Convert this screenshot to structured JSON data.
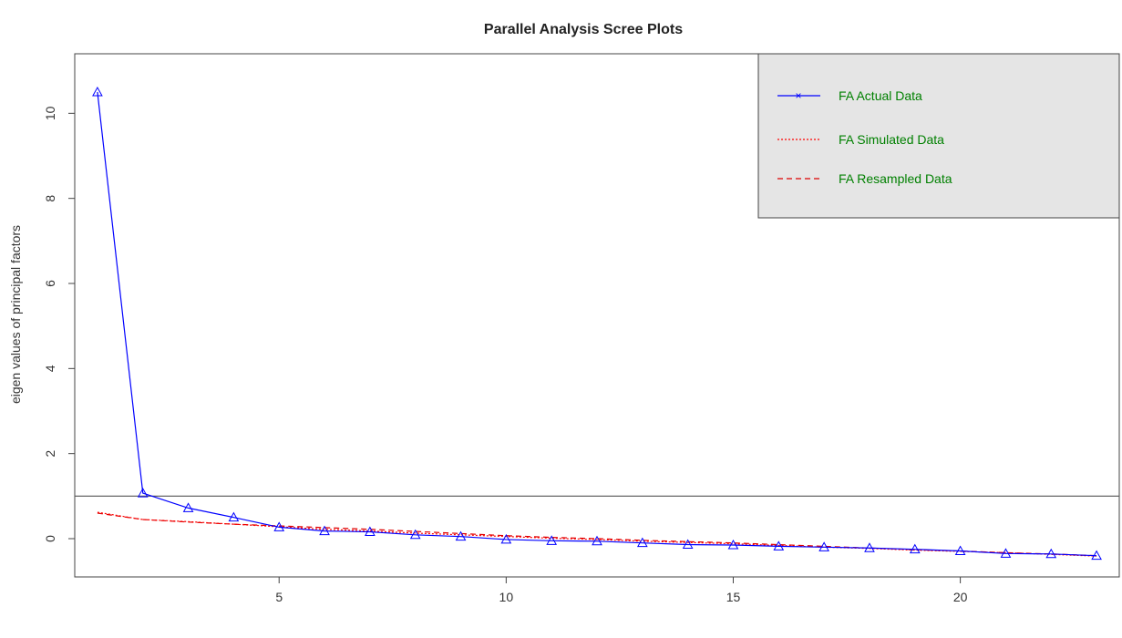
{
  "chart_data": {
    "type": "line",
    "title": "Parallel Analysis Scree Plots",
    "xlabel": "",
    "ylabel": "eigen values of principal factors",
    "xlim": [
      0.5,
      23.5
    ],
    "ylim": [
      -0.9,
      11.4
    ],
    "x_ticks": [
      5,
      10,
      15,
      20
    ],
    "y_ticks": [
      0,
      2,
      4,
      6,
      8,
      10
    ],
    "grid": false,
    "legend_position": "top-right",
    "reference_line": 1,
    "x": [
      1,
      2,
      3,
      4,
      5,
      6,
      7,
      8,
      9,
      10,
      11,
      12,
      13,
      14,
      15,
      16,
      17,
      18,
      19,
      20,
      21,
      22,
      23
    ],
    "series": [
      {
        "name": "FA  Actual Data",
        "values": [
          10.5,
          1.07,
          0.72,
          0.5,
          0.27,
          0.18,
          0.16,
          0.09,
          0.05,
          -0.02,
          -0.05,
          -0.06,
          -0.1,
          -0.14,
          -0.15,
          -0.18,
          -0.2,
          -0.22,
          -0.25,
          -0.29,
          -0.35,
          -0.36,
          -0.4
        ],
        "color": "#0000ff",
        "linestyle": "solid",
        "marker": "triangle"
      },
      {
        "name": "FA  Simulated Data",
        "values": [
          0.62,
          0.45,
          0.4,
          0.34,
          0.28,
          0.22,
          0.18,
          0.13,
          0.09,
          0.05,
          0.01,
          -0.02,
          -0.06,
          -0.09,
          -0.12,
          -0.16,
          -0.2,
          -0.23,
          -0.27,
          -0.3,
          -0.33,
          -0.37,
          -0.41
        ],
        "color": "#ff0000",
        "linestyle": "dotted"
      },
      {
        "name": "FA  Resampled Data",
        "values": [
          0.6,
          0.45,
          0.39,
          0.34,
          0.3,
          0.26,
          0.22,
          0.17,
          0.12,
          0.07,
          0.03,
          0.0,
          -0.04,
          -0.07,
          -0.1,
          -0.14,
          -0.18,
          -0.22,
          -0.26,
          -0.29,
          -0.33,
          -0.36,
          -0.4
        ],
        "color": "#dd0000",
        "linestyle": "dashed"
      }
    ],
    "legend": {
      "entries": [
        "FA  Actual Data",
        "FA  Simulated Data",
        "FA  Resampled Data"
      ],
      "text_color": "#008000",
      "background": "#e5e5e5"
    }
  }
}
